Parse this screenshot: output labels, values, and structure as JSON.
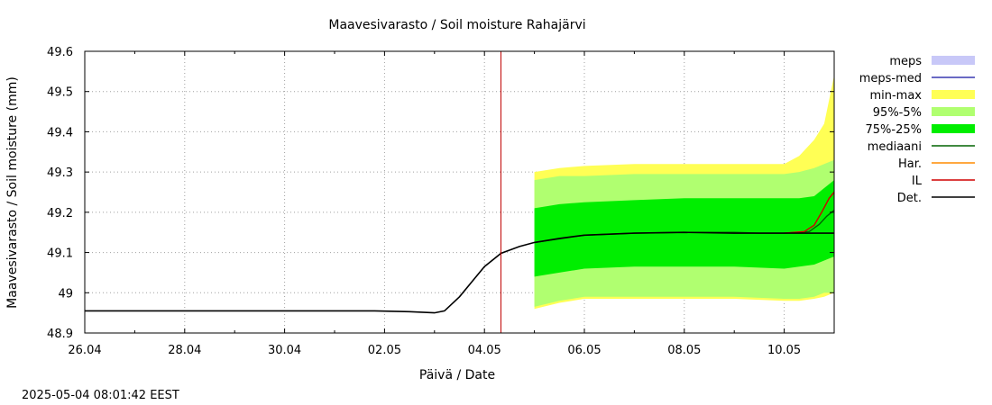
{
  "chart_data": {
    "type": "area",
    "title": "Maavesivarasto / Soil moisture   Rahajärvi",
    "xlabel": "Päivä / Date",
    "ylabel": "Maavesivarasto / Soil moisture (mm)",
    "xlim": [
      0,
      15
    ],
    "ylim": [
      48.9,
      49.6
    ],
    "grid": true,
    "legend_placement": "right",
    "x_ticks": [
      {
        "x": 0,
        "label": "26.04"
      },
      {
        "x": 2,
        "label": "28.04"
      },
      {
        "x": 4,
        "label": "30.04"
      },
      {
        "x": 6,
        "label": "02.05"
      },
      {
        "x": 8,
        "label": "04.05"
      },
      {
        "x": 10,
        "label": "06.05"
      },
      {
        "x": 12,
        "label": "08.05"
      },
      {
        "x": 14,
        "label": "10.05"
      }
    ],
    "y_ticks": [
      {
        "y": 48.9,
        "label": "48.9"
      },
      {
        "y": 49.0,
        "label": "49"
      },
      {
        "y": 49.1,
        "label": "49.1"
      },
      {
        "y": 49.2,
        "label": "49.2"
      },
      {
        "y": 49.3,
        "label": "49.3"
      },
      {
        "y": 49.4,
        "label": "49.4"
      },
      {
        "y": 49.5,
        "label": "49.5"
      },
      {
        "y": 49.6,
        "label": "49.6"
      }
    ],
    "current_time_x": 8.33,
    "legend": [
      {
        "label": "meps",
        "kind": "box",
        "color": "#c8c8f8"
      },
      {
        "label": "meps-med",
        "kind": "line",
        "color": "#3838b0"
      },
      {
        "label": "min-max",
        "kind": "box",
        "color": "#ffff55"
      },
      {
        "label": "95%-5%",
        "kind": "box",
        "color": "#b0ff70"
      },
      {
        "label": "75%-25%",
        "kind": "box",
        "color": "#00ee00"
      },
      {
        "label": "mediaani",
        "kind": "line",
        "color": "#006400"
      },
      {
        "label": "Har.",
        "kind": "line",
        "color": "#ff8c00"
      },
      {
        "label": "IL",
        "kind": "line",
        "color": "#d00000"
      },
      {
        "label": "Det.",
        "kind": "line",
        "color": "#000000"
      }
    ],
    "bands": [
      {
        "name": "min-max",
        "color": "#ffff55",
        "x": [
          9,
          9.5,
          10,
          11,
          12,
          13,
          14,
          14.3,
          14.6,
          14.8,
          15
        ],
        "low": [
          48.96,
          48.975,
          48.985,
          48.985,
          48.985,
          48.985,
          48.98,
          48.98,
          48.985,
          48.99,
          49.0
        ],
        "high": [
          49.3,
          49.31,
          49.315,
          49.32,
          49.32,
          49.32,
          49.32,
          49.34,
          49.38,
          49.42,
          49.54
        ]
      },
      {
        "name": "95%-5%",
        "color": "#b0ff70",
        "x": [
          9,
          9.5,
          10,
          11,
          12,
          13,
          14,
          14.3,
          14.6,
          14.8,
          15
        ],
        "low": [
          48.965,
          48.98,
          48.99,
          48.99,
          48.99,
          48.99,
          48.985,
          48.985,
          48.99,
          49.0,
          49.0
        ],
        "high": [
          49.28,
          49.29,
          49.29,
          49.295,
          49.295,
          49.295,
          49.295,
          49.3,
          49.31,
          49.32,
          49.33
        ]
      },
      {
        "name": "75%-25%",
        "color": "#00ee00",
        "x": [
          9,
          9.5,
          10,
          11,
          12,
          13,
          14,
          14.3,
          14.6,
          14.8,
          15
        ],
        "low": [
          49.04,
          49.05,
          49.06,
          49.065,
          49.065,
          49.065,
          49.06,
          49.065,
          49.07,
          49.08,
          49.09
        ],
        "high": [
          49.21,
          49.22,
          49.225,
          49.23,
          49.235,
          49.235,
          49.235,
          49.235,
          49.24,
          49.26,
          49.28
        ]
      }
    ],
    "series": [
      {
        "name": "mediaani",
        "color": "#006400",
        "x": [
          9,
          10,
          11,
          12,
          13,
          13.5,
          14,
          14.5,
          14.7,
          14.85,
          15
        ],
        "y": [
          49.125,
          49.143,
          49.148,
          49.15,
          49.15,
          49.148,
          49.148,
          49.152,
          49.17,
          49.19,
          49.205
        ]
      },
      {
        "name": "IL",
        "color": "#d00000",
        "x": [
          14,
          14.4,
          14.6,
          14.75,
          14.9,
          15
        ],
        "y": [
          49.148,
          49.152,
          49.168,
          49.2,
          49.235,
          49.25
        ]
      },
      {
        "name": "Det.",
        "color": "#000000",
        "x": [
          0,
          5.8,
          6.5,
          7.0,
          7.2,
          7.5,
          7.8,
          8.0,
          8.33,
          8.7,
          9.0,
          9.5,
          10,
          11,
          12,
          13,
          14,
          15
        ],
        "y": [
          48.955,
          48.955,
          48.953,
          48.95,
          48.955,
          48.99,
          49.035,
          49.065,
          49.098,
          49.115,
          49.125,
          49.135,
          49.143,
          49.148,
          49.15,
          49.148,
          49.148,
          49.148
        ]
      }
    ]
  },
  "footer": {
    "timestamp": "2025-05-04 08:01:42 EEST"
  }
}
